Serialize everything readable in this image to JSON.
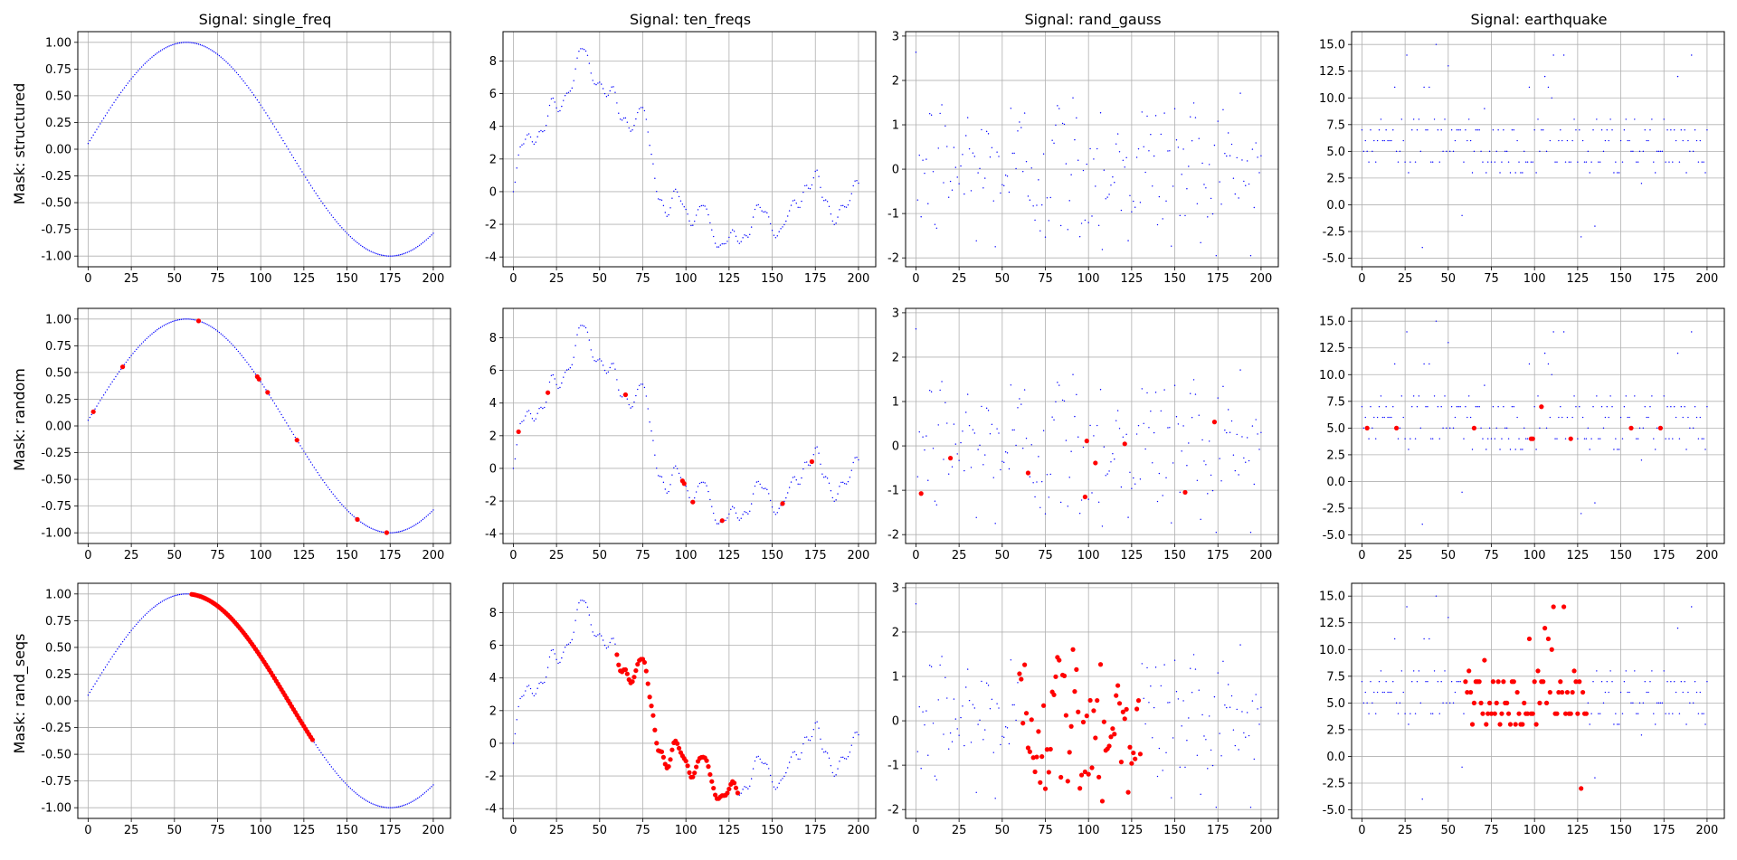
{
  "figure": {
    "columns": [
      "Signal: single_freq",
      "Signal: ten_freqs",
      "Signal: rand_gauss",
      "Signal: earthquake"
    ],
    "rows": [
      "Mask: structured",
      "Mask: random",
      "Mask: rand_seqs"
    ]
  },
  "colors": {
    "signal": "#0000ff",
    "masked": "#ff0000",
    "grid": "#b0b0b0",
    "axis": "#000000"
  },
  "chart_data": [
    {
      "type": "scatter",
      "row": 0,
      "col": 0,
      "title": "Signal: single_freq",
      "ylabel": "Mask: structured",
      "signal": "single_freq",
      "mask": "structured",
      "xlim": [
        -6,
        210
      ],
      "ylim": [
        -1.1,
        1.1
      ],
      "xticks": [
        0,
        25,
        50,
        75,
        100,
        125,
        150,
        175,
        200
      ],
      "yticks": [
        -1.0,
        -0.75,
        -0.5,
        -0.25,
        0.0,
        0.25,
        0.5,
        0.75,
        1.0
      ],
      "masked_indices": [],
      "grid": true
    },
    {
      "type": "scatter",
      "row": 0,
      "col": 1,
      "title": "Signal: ten_freqs",
      "ylabel": "",
      "signal": "ten_freqs",
      "mask": "structured",
      "xlim": [
        -6,
        210
      ],
      "ylim": [
        -4.6,
        9.8
      ],
      "xticks": [
        0,
        25,
        50,
        75,
        100,
        125,
        150,
        175,
        200
      ],
      "yticks": [
        -4,
        -2,
        0,
        2,
        4,
        6,
        8
      ],
      "masked_indices": [],
      "grid": true
    },
    {
      "type": "scatter",
      "row": 0,
      "col": 2,
      "title": "Signal: rand_gauss",
      "ylabel": "",
      "signal": "rand_gauss",
      "mask": "structured",
      "xlim": [
        -6,
        210
      ],
      "ylim": [
        -2.2,
        3.1
      ],
      "xticks": [
        0,
        25,
        50,
        75,
        100,
        125,
        150,
        175,
        200
      ],
      "yticks": [
        -2,
        -1,
        0,
        1,
        2,
        3
      ],
      "masked_indices": [],
      "grid": true
    },
    {
      "type": "scatter",
      "row": 0,
      "col": 3,
      "title": "Signal: earthquake",
      "ylabel": "",
      "signal": "earthquake",
      "mask": "structured",
      "xlim": [
        -6,
        210
      ],
      "ylim": [
        -5.8,
        16.2
      ],
      "xticks": [
        0,
        25,
        50,
        75,
        100,
        125,
        150,
        175,
        200
      ],
      "yticks": [
        -5.0,
        -2.5,
        0.0,
        2.5,
        5.0,
        7.5,
        10.0,
        12.5,
        15.0
      ],
      "masked_indices": [],
      "grid": true
    },
    {
      "type": "scatter",
      "row": 1,
      "col": 0,
      "title": "",
      "ylabel": "Mask: random",
      "signal": "single_freq",
      "mask": "random",
      "xlim": [
        -6,
        210
      ],
      "ylim": [
        -1.1,
        1.1
      ],
      "xticks": [
        0,
        25,
        50,
        75,
        100,
        125,
        150,
        175,
        200
      ],
      "yticks": [
        -1.0,
        -0.75,
        -0.5,
        -0.25,
        0.0,
        0.25,
        0.5,
        0.75,
        1.0
      ],
      "masked_indices": [
        3,
        20,
        64,
        98,
        99,
        104,
        121,
        156,
        173
      ],
      "grid": true
    },
    {
      "type": "scatter",
      "row": 1,
      "col": 1,
      "title": "",
      "ylabel": "",
      "signal": "ten_freqs",
      "mask": "random",
      "xlim": [
        -6,
        210
      ],
      "ylim": [
        -4.6,
        9.8
      ],
      "xticks": [
        0,
        25,
        50,
        75,
        100,
        125,
        150,
        175,
        200
      ],
      "yticks": [
        -4,
        -2,
        0,
        2,
        4,
        6,
        8
      ],
      "masked_indices": [
        3,
        20,
        65,
        98,
        99,
        104,
        121,
        156,
        173
      ],
      "grid": true
    },
    {
      "type": "scatter",
      "row": 1,
      "col": 2,
      "title": "",
      "ylabel": "",
      "signal": "rand_gauss",
      "mask": "random",
      "xlim": [
        -6,
        210
      ],
      "ylim": [
        -2.2,
        3.1
      ],
      "xticks": [
        0,
        25,
        50,
        75,
        100,
        125,
        150,
        175,
        200
      ],
      "yticks": [
        -2,
        -1,
        0,
        1,
        2,
        3
      ],
      "masked_indices": [
        3,
        20,
        65,
        98,
        99,
        104,
        121,
        156,
        173
      ],
      "grid": true
    },
    {
      "type": "scatter",
      "row": 1,
      "col": 3,
      "title": "",
      "ylabel": "",
      "signal": "earthquake",
      "mask": "random",
      "xlim": [
        -6,
        210
      ],
      "ylim": [
        -5.8,
        16.2
      ],
      "xticks": [
        0,
        25,
        50,
        75,
        100,
        125,
        150,
        175,
        200
      ],
      "yticks": [
        -5.0,
        -2.5,
        0.0,
        2.5,
        5.0,
        7.5,
        10.0,
        12.5,
        15.0
      ],
      "masked_indices": [
        3,
        20,
        65,
        98,
        99,
        104,
        121,
        156,
        173
      ],
      "grid": true
    },
    {
      "type": "scatter",
      "row": 2,
      "col": 0,
      "title": "",
      "ylabel": "Mask: rand_seqs",
      "signal": "single_freq",
      "mask": "rand_seqs",
      "xlim": [
        -6,
        210
      ],
      "ylim": [
        -1.1,
        1.1
      ],
      "xticks": [
        0,
        25,
        50,
        75,
        100,
        125,
        150,
        175,
        200
      ],
      "yticks": [
        -1.0,
        -0.75,
        -0.5,
        -0.25,
        0.0,
        0.25,
        0.5,
        0.75,
        1.0
      ],
      "masked_range": [
        60,
        130
      ],
      "grid": true
    },
    {
      "type": "scatter",
      "row": 2,
      "col": 1,
      "title": "",
      "ylabel": "",
      "signal": "ten_freqs",
      "mask": "rand_seqs",
      "xlim": [
        -6,
        210
      ],
      "ylim": [
        -4.6,
        9.8
      ],
      "xticks": [
        0,
        25,
        50,
        75,
        100,
        125,
        150,
        175,
        200
      ],
      "yticks": [
        -4,
        -2,
        0,
        2,
        4,
        6,
        8
      ],
      "masked_range": [
        60,
        130
      ],
      "grid": true
    },
    {
      "type": "scatter",
      "row": 2,
      "col": 2,
      "title": "",
      "ylabel": "",
      "signal": "rand_gauss",
      "mask": "rand_seqs",
      "xlim": [
        -6,
        210
      ],
      "ylim": [
        -2.2,
        3.1
      ],
      "xticks": [
        0,
        25,
        50,
        75,
        100,
        125,
        150,
        175,
        200
      ],
      "yticks": [
        -2,
        -1,
        0,
        1,
        2,
        3
      ],
      "masked_range": [
        60,
        130
      ],
      "grid": true
    },
    {
      "type": "scatter",
      "row": 2,
      "col": 3,
      "title": "",
      "ylabel": "",
      "signal": "earthquake",
      "mask": "rand_seqs",
      "xlim": [
        -6,
        210
      ],
      "ylim": [
        -5.8,
        16.2
      ],
      "xticks": [
        0,
        25,
        50,
        75,
        100,
        125,
        150,
        175,
        200
      ],
      "yticks": [
        -5.0,
        -2.5,
        0.0,
        2.5,
        5.0,
        7.5,
        10.0,
        12.5,
        15.0
      ],
      "masked_range": [
        60,
        130
      ],
      "grid": true
    }
  ]
}
